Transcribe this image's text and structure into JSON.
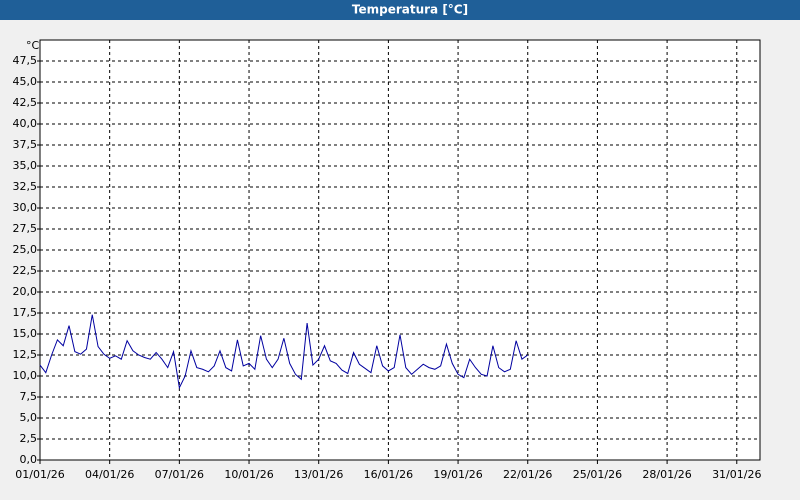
{
  "chart_data": {
    "type": "line",
    "title": "Temperatura [°C]",
    "y_unit": "°C",
    "x": [
      0,
      0.25,
      0.5,
      0.75,
      1,
      1.25,
      1.5,
      1.75,
      2,
      2.25,
      2.5,
      2.75,
      3,
      3.25,
      3.5,
      3.75,
      4,
      4.25,
      4.5,
      4.75,
      5,
      5.25,
      5.5,
      5.75,
      6,
      6.25,
      6.5,
      6.75,
      7,
      7.25,
      7.5,
      7.75,
      8,
      8.25,
      8.5,
      8.75,
      9,
      9.25,
      9.5,
      9.75,
      10,
      10.25,
      10.5,
      10.75,
      11,
      11.25,
      11.5,
      11.75,
      12,
      12.25,
      12.5,
      12.75,
      13,
      13.25,
      13.5,
      13.75,
      14,
      14.25,
      14.5,
      14.75,
      15,
      15.25,
      15.5,
      15.75,
      16,
      16.25,
      16.5,
      16.75,
      17,
      17.25,
      17.5,
      17.75,
      18,
      18.25,
      18.5,
      18.75,
      19,
      19.25,
      19.5,
      19.75,
      20,
      20.25,
      20.5,
      20.75,
      21
    ],
    "series": [
      {
        "color": "#0000a0",
        "values": [
          11.3,
          10.4,
          12.5,
          14.3,
          13.6,
          16.0,
          12.9,
          12.6,
          13.2,
          17.3,
          13.5,
          12.6,
          12.1,
          12.4,
          12.0,
          14.2,
          13.0,
          12.5,
          12.2,
          12.0,
          12.8,
          12.0,
          11.0,
          12.9,
          8.6,
          10.0,
          13.0,
          11.0,
          10.8,
          10.5,
          11.2,
          13.0,
          11.0,
          10.6,
          14.3,
          11.2,
          11.5,
          10.8,
          14.8,
          12.0,
          11.0,
          12.0,
          14.5,
          11.5,
          10.2,
          9.6,
          16.3,
          11.3,
          12.0,
          13.6,
          11.8,
          11.5,
          10.7,
          10.3,
          12.8,
          11.4,
          10.9,
          10.4,
          13.6,
          11.2,
          10.6,
          11.0,
          14.9,
          11.0,
          10.2,
          10.8,
          11.4,
          11.0,
          10.8,
          11.2,
          13.8,
          11.5,
          10.2,
          9.8,
          12.0,
          11.0,
          10.2,
          10.0,
          13.6,
          11.0,
          10.5,
          10.8,
          14.2,
          12.0,
          12.5
        ]
      }
    ],
    "xlim": [
      0,
      31
    ],
    "xticks": [
      {
        "value": 0,
        "label": "01/01/26"
      },
      {
        "value": 3,
        "label": "04/01/26"
      },
      {
        "value": 6,
        "label": "07/01/26"
      },
      {
        "value": 9,
        "label": "10/01/26"
      },
      {
        "value": 12,
        "label": "13/01/26"
      },
      {
        "value": 15,
        "label": "16/01/26"
      },
      {
        "value": 18,
        "label": "19/01/26"
      },
      {
        "value": 21,
        "label": "22/01/26"
      },
      {
        "value": 24,
        "label": "25/01/26"
      },
      {
        "value": 27,
        "label": "28/01/26"
      },
      {
        "value": 30,
        "label": "31/01/26"
      }
    ],
    "ylim": [
      0,
      50
    ],
    "yticks": [
      {
        "value": 0,
        "label": "0,0"
      },
      {
        "value": 2.5,
        "label": "2,5"
      },
      {
        "value": 5,
        "label": "5,0"
      },
      {
        "value": 7.5,
        "label": "7,5"
      },
      {
        "value": 10,
        "label": "10,0"
      },
      {
        "value": 12.5,
        "label": "12,5"
      },
      {
        "value": 15,
        "label": "15,0"
      },
      {
        "value": 17.5,
        "label": "17,5"
      },
      {
        "value": 20,
        "label": "20,0"
      },
      {
        "value": 22.5,
        "label": "22,5"
      },
      {
        "value": 25,
        "label": "25,0"
      },
      {
        "value": 27.5,
        "label": "27,5"
      },
      {
        "value": 30,
        "label": "30,0"
      },
      {
        "value": 32.5,
        "label": "32,5"
      },
      {
        "value": 35,
        "label": "35,0"
      },
      {
        "value": 37.5,
        "label": "37,5"
      },
      {
        "value": 40,
        "label": "40,0"
      },
      {
        "value": 42.5,
        "label": "42,5"
      },
      {
        "value": 45,
        "label": "45,0"
      },
      {
        "value": 47.5,
        "label": "47,5"
      }
    ],
    "grid": true
  }
}
